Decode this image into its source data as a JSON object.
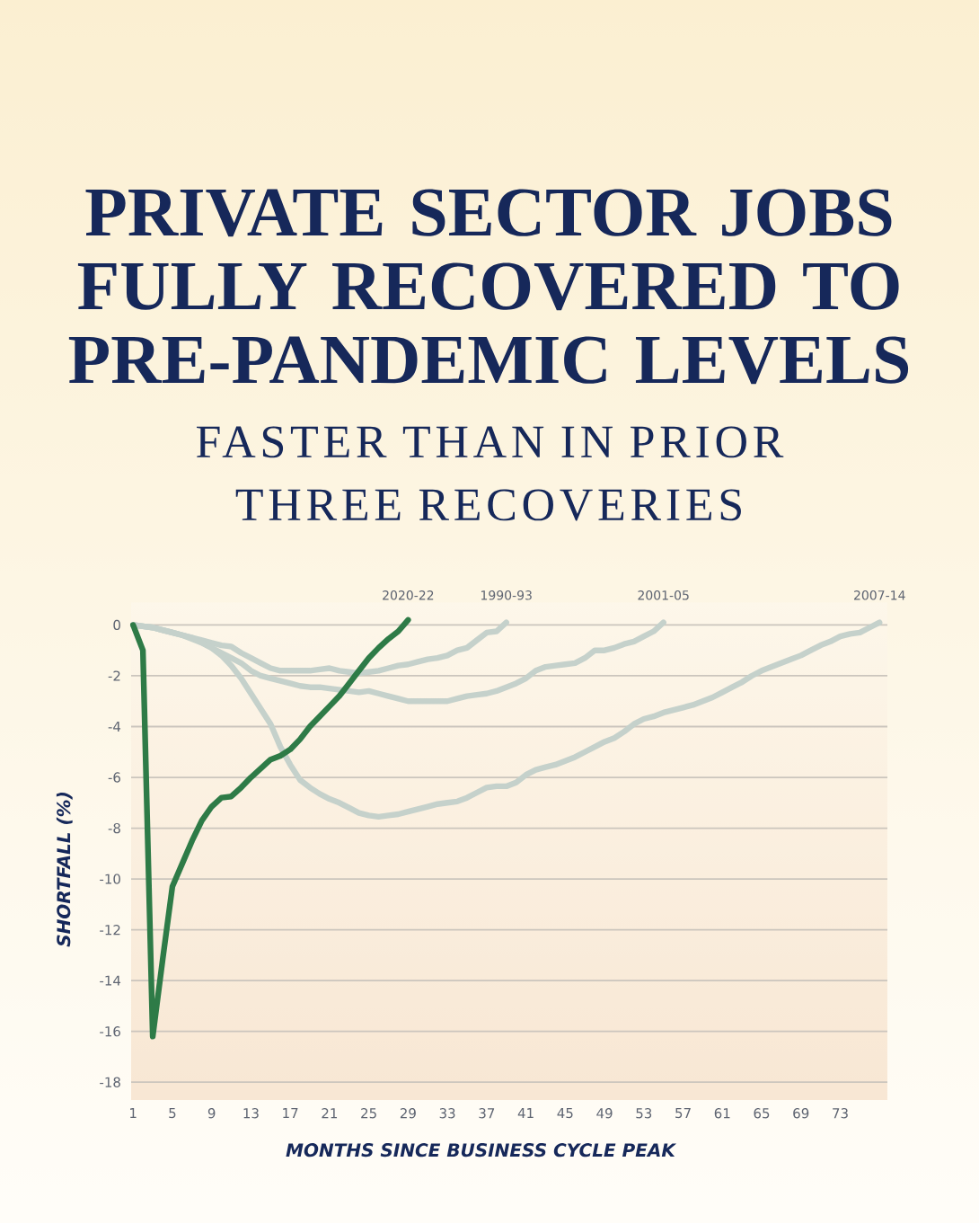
{
  "chart_data": {
    "type": "line",
    "title": "PRIVATE SECTOR JOBS FULLY RECOVERED TO PRE-PANDEMIC LEVELS",
    "subtitle": "FASTER THAN IN PRIOR THREE RECOVERIES",
    "xlabel": "MONTHS SINCE BUSINESS CYCLE PEAK",
    "ylabel": "SHORTFALL (%)",
    "xlim": [
      0.8,
      77.8
    ],
    "xticks": [
      1,
      5,
      9,
      13,
      17,
      21,
      25,
      29,
      33,
      37,
      41,
      45,
      49,
      53,
      57,
      61,
      65,
      69,
      73
    ],
    "ylim": [
      -18.7,
      0.9
    ],
    "yticks": [
      -18,
      -16,
      -14,
      -12,
      -10,
      -8,
      -6,
      -4,
      -2,
      0
    ],
    "grid": "y",
    "marker": "none",
    "line_style": "solid",
    "series": [
      {
        "name": "1990-93",
        "color": "#c5d1cb",
        "x": [
          1,
          2,
          3,
          4,
          5,
          6,
          7,
          8,
          9,
          10,
          11,
          12,
          13,
          14,
          15,
          16,
          17,
          18,
          19,
          20,
          21,
          22,
          23,
          24,
          25,
          26,
          27,
          28,
          29,
          30,
          31,
          32,
          33,
          34,
          35,
          36,
          37,
          38,
          39
        ],
        "values": [
          0,
          -0.05,
          -0.1,
          -0.2,
          -0.3,
          -0.4,
          -0.5,
          -0.6,
          -0.7,
          -0.8,
          -0.85,
          -1.1,
          -1.3,
          -1.5,
          -1.7,
          -1.8,
          -1.8,
          -1.8,
          -1.8,
          -1.75,
          -1.7,
          -1.8,
          -1.85,
          -1.9,
          -1.85,
          -1.8,
          -1.7,
          -1.6,
          -1.55,
          -1.45,
          -1.35,
          -1.3,
          -1.2,
          -1.0,
          -0.9,
          -0.6,
          -0.3,
          -0.25,
          0.1
        ]
      },
      {
        "name": "2001-05",
        "color": "#c5d1cb",
        "x": [
          1,
          2,
          3,
          4,
          5,
          6,
          7,
          8,
          9,
          10,
          11,
          12,
          13,
          14,
          15,
          16,
          17,
          18,
          19,
          20,
          21,
          22,
          23,
          24,
          25,
          26,
          27,
          28,
          29,
          30,
          31,
          32,
          33,
          34,
          35,
          36,
          37,
          38,
          39,
          40,
          41,
          42,
          43,
          44,
          45,
          46,
          47,
          48,
          49,
          50,
          51,
          52,
          53,
          54,
          55
        ],
        "values": [
          0,
          -0.05,
          -0.1,
          -0.2,
          -0.3,
          -0.4,
          -0.55,
          -0.7,
          -0.9,
          -1.1,
          -1.3,
          -1.5,
          -1.8,
          -2.0,
          -2.1,
          -2.2,
          -2.3,
          -2.4,
          -2.45,
          -2.45,
          -2.5,
          -2.55,
          -2.6,
          -2.65,
          -2.6,
          -2.7,
          -2.8,
          -2.9,
          -3.0,
          -3.0,
          -3.0,
          -3.0,
          -3.0,
          -2.9,
          -2.8,
          -2.75,
          -2.7,
          -2.6,
          -2.45,
          -2.3,
          -2.1,
          -1.8,
          -1.65,
          -1.6,
          -1.55,
          -1.5,
          -1.3,
          -1.0,
          -1.0,
          -0.9,
          -0.75,
          -0.65,
          -0.45,
          -0.25,
          0.1
        ]
      },
      {
        "name": "2007-14",
        "color": "#c5d1cb",
        "x": [
          1,
          2,
          3,
          4,
          5,
          6,
          7,
          8,
          9,
          10,
          11,
          12,
          13,
          14,
          15,
          16,
          17,
          18,
          19,
          20,
          21,
          22,
          23,
          24,
          25,
          26,
          27,
          28,
          29,
          30,
          31,
          32,
          33,
          34,
          35,
          36,
          37,
          38,
          39,
          40,
          41,
          42,
          43,
          44,
          45,
          46,
          47,
          48,
          49,
          50,
          51,
          52,
          53,
          54,
          55,
          56,
          57,
          58,
          59,
          60,
          61,
          62,
          63,
          64,
          65,
          66,
          67,
          68,
          69,
          70,
          71,
          72,
          73,
          74,
          75,
          76,
          77
        ],
        "values": [
          0,
          -0.05,
          -0.1,
          -0.2,
          -0.3,
          -0.4,
          -0.5,
          -0.7,
          -0.9,
          -1.2,
          -1.6,
          -2.1,
          -2.7,
          -3.3,
          -3.9,
          -4.8,
          -5.5,
          -6.1,
          -6.4,
          -6.65,
          -6.85,
          -7.0,
          -7.2,
          -7.4,
          -7.5,
          -7.55,
          -7.5,
          -7.45,
          -7.35,
          -7.25,
          -7.15,
          -7.05,
          -7.0,
          -6.95,
          -6.8,
          -6.6,
          -6.4,
          -6.35,
          -6.35,
          -6.2,
          -5.9,
          -5.7,
          -5.6,
          -5.5,
          -5.35,
          -5.2,
          -5.0,
          -4.8,
          -4.6,
          -4.45,
          -4.2,
          -3.9,
          -3.7,
          -3.6,
          -3.45,
          -3.35,
          -3.25,
          -3.15,
          -3.0,
          -2.85,
          -2.65,
          -2.45,
          -2.25,
          -2.0,
          -1.8,
          -1.65,
          -1.5,
          -1.35,
          -1.2,
          -1.0,
          -0.8,
          -0.65,
          -0.45,
          -0.35,
          -0.3,
          -0.1,
          0.1
        ]
      },
      {
        "name": "2020-22",
        "color": "#2e7b47",
        "x": [
          1,
          2,
          3,
          4,
          5,
          6,
          7,
          8,
          9,
          10,
          11,
          12,
          13,
          14,
          15,
          16,
          17,
          18,
          19,
          20,
          21,
          22,
          23,
          24,
          25,
          26,
          27,
          28,
          29
        ],
        "values": [
          0,
          -1.0,
          -16.2,
          -13.2,
          -10.3,
          -9.4,
          -8.5,
          -7.7,
          -7.15,
          -6.8,
          -6.75,
          -6.4,
          -6.0,
          -5.65,
          -5.3,
          -5.15,
          -4.9,
          -4.5,
          -4.0,
          -3.6,
          -3.2,
          -2.8,
          -2.3,
          -1.8,
          -1.3,
          -0.9,
          -0.55,
          -0.25,
          0.2
        ]
      }
    ]
  }
}
